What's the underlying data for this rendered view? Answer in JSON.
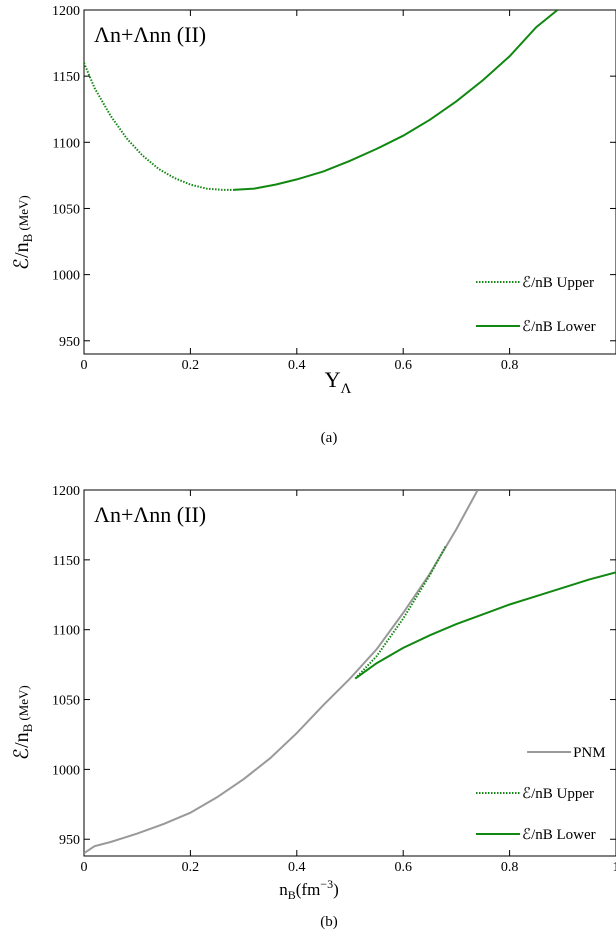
{
  "chart_data": [
    {
      "type": "line",
      "panel_caption": "(a)",
      "title": "Λn+Λnn (II)",
      "xlabel_main": "Y",
      "xlabel_sub": "Λ",
      "ylabel_main": "ℰ/n",
      "ylabel_sub": "B",
      "ylabel_unit": "(MeV)",
      "xlim": [
        0,
        1
      ],
      "ylim": [
        940,
        1200
      ],
      "xticks": [
        0,
        0.2,
        0.4,
        0.6,
        0.8
      ],
      "xtick_labels": [
        "0",
        "0.2",
        "0.4",
        "0.6",
        "0.8"
      ],
      "yticks": [
        950,
        1000,
        1050,
        1100,
        1150,
        1200
      ],
      "ytick_labels": [
        "950",
        "1000",
        "1050",
        "1100",
        "1150",
        "1200"
      ],
      "legend_position": "bottom-right",
      "series": [
        {
          "name": "ℰ/nB Upper",
          "color": "#118811",
          "style": "dotted",
          "x": [
            0,
            0.02,
            0.05,
            0.08,
            0.11,
            0.14,
            0.17,
            0.2,
            0.23,
            0.26,
            0.28
          ],
          "y": [
            1160,
            1141,
            1120,
            1103,
            1090,
            1080,
            1073,
            1068,
            1065,
            1064,
            1064
          ]
        },
        {
          "name": "ℰ/nB Lower",
          "color": "#118811",
          "style": "solid",
          "x": [
            0.28,
            0.32,
            0.36,
            0.4,
            0.45,
            0.5,
            0.55,
            0.6,
            0.65,
            0.7,
            0.75,
            0.8,
            0.85,
            0.89
          ],
          "y": [
            1064,
            1065,
            1068,
            1072,
            1078,
            1086,
            1095,
            1105,
            1117,
            1131,
            1147,
            1165,
            1187,
            1200
          ]
        }
      ]
    },
    {
      "type": "line",
      "panel_caption": "(b)",
      "title": "Λn+Λnn (II)",
      "xlabel_main": "n",
      "xlabel_sub": "B",
      "xlabel_unit": "(fm",
      "xlabel_sup": "−3",
      "xlabel_close": ")",
      "ylabel_main": "ℰ/n",
      "ylabel_sub": "B",
      "ylabel_unit": "(MeV)",
      "xlim": [
        0,
        1
      ],
      "ylim": [
        938,
        1200
      ],
      "xticks": [
        0,
        0.2,
        0.4,
        0.6,
        0.8,
        1
      ],
      "xtick_labels": [
        "0",
        "0.2",
        "0.4",
        "0.6",
        "0.8",
        "1"
      ],
      "yticks": [
        950,
        1000,
        1050,
        1100,
        1150,
        1200
      ],
      "ytick_labels": [
        "950",
        "1000",
        "1050",
        "1100",
        "1150",
        "1200"
      ],
      "legend_position": "bottom-right",
      "series": [
        {
          "name": "PNM",
          "color": "#999999",
          "style": "solid",
          "x": [
            0,
            0.02,
            0.05,
            0.1,
            0.15,
            0.2,
            0.25,
            0.3,
            0.35,
            0.4,
            0.45,
            0.5,
            0.55,
            0.6,
            0.65,
            0.7,
            0.74
          ],
          "y": [
            940,
            945,
            948,
            954,
            961,
            969,
            980,
            993,
            1008,
            1026,
            1046,
            1065,
            1086,
            1112,
            1140,
            1172,
            1200
          ]
        },
        {
          "name": "ℰ/nB Upper",
          "color": "#118811",
          "style": "dotted",
          "x": [
            0.51,
            0.55,
            0.6,
            0.65,
            0.68
          ],
          "y": [
            1065,
            1081,
            1108,
            1139,
            1160
          ]
        },
        {
          "name": "ℰ/nB Lower",
          "color": "#118811",
          "style": "solid",
          "x": [
            0.51,
            0.55,
            0.6,
            0.65,
            0.7,
            0.75,
            0.8,
            0.85,
            0.9,
            0.95,
            1.0
          ],
          "y": [
            1065,
            1076,
            1087,
            1096,
            1104,
            1111,
            1118,
            1124,
            1130,
            1136,
            1141
          ]
        }
      ]
    }
  ]
}
